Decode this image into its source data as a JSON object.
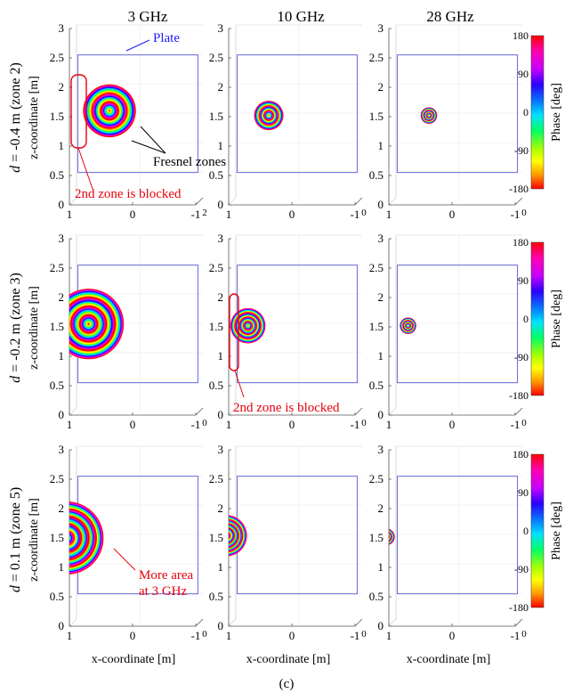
{
  "figure": {
    "caption": "(c)",
    "column_titles": [
      "3 GHz",
      "10 GHz",
      "28 GHz"
    ],
    "row_labels": [
      {
        "d": "d",
        "rest": " = -0.4 m (zone 2)",
        "axis": "z-coordinate [m]"
      },
      {
        "d": "d",
        "rest": " = -0.2 m (zone 3)",
        "axis": "z-coordinate [m]"
      },
      {
        "d": "d",
        "rest": " = 0.1 m (zone 5)",
        "axis": "z-coordinate [m]"
      }
    ],
    "xlabel": "x-coordinate [m]",
    "colorbar_label": "Phase [deg]",
    "colorbar_ticks": [
      "180",
      "90",
      "0",
      "-90",
      "-180"
    ],
    "y_ticks": [
      "0",
      "0.5",
      "1",
      "1.5",
      "2",
      "2.5",
      "3"
    ],
    "x_ticks": [
      "1",
      "0",
      "-1"
    ],
    "x_tick_depth_suffix": [
      "2",
      "0"
    ],
    "annotations": {
      "plate": "Plate",
      "fresnel": "Fresnel zones",
      "blocked_1": "2nd zone is blocked",
      "blocked_2": "2nd zone is blocked",
      "more_area_line1": "More area",
      "more_area_line2": "at 3 GHz"
    },
    "colors": {
      "plate_outline": "#5b5bd6",
      "annotation_red": "#e8000b",
      "plate_label": "#1a1aff",
      "colormap": [
        "#ff0000",
        "#ff00b0",
        "#c800ff",
        "#2a00ff",
        "#0090ff",
        "#00e2ff",
        "#00ff66",
        "#aaff00",
        "#ffff00",
        "#ff9900",
        "#ff0000"
      ]
    }
  },
  "chart_data": {
    "type": "heatmap",
    "description_source": "3x3 grid of phase maps of the field on a plate (x-coordinate vs z-coordinate)",
    "xlim": [
      1,
      -1
    ],
    "ylim": [
      0,
      3
    ],
    "plate": {
      "x": [
        0.95,
        -0.95
      ],
      "z": [
        0.55,
        2.55
      ]
    },
    "phase_range_deg": [
      -180,
      180
    ],
    "panels": [
      {
        "row": 0,
        "col": 0,
        "freq": "3 GHz",
        "d": "-0.4 m",
        "center": [
          0.45,
          1.6
        ],
        "radius": 0.45,
        "ring_count": 3
      },
      {
        "row": 0,
        "col": 1,
        "freq": "10 GHz",
        "d": "-0.4 m",
        "center": [
          0.45,
          1.52
        ],
        "radius": 0.25,
        "ring_count": 3
      },
      {
        "row": 0,
        "col": 2,
        "freq": "28 GHz",
        "d": "-0.4 m",
        "center": [
          0.45,
          1.52
        ],
        "radius": 0.14,
        "ring_count": 3
      },
      {
        "row": 1,
        "col": 0,
        "freq": "3 GHz",
        "d": "-0.2 m",
        "center": [
          0.78,
          1.55
        ],
        "radius": 0.6,
        "ring_count": 4
      },
      {
        "row": 1,
        "col": 1,
        "freq": "10 GHz",
        "d": "-0.2 m",
        "center": [
          0.78,
          1.52
        ],
        "radius": 0.3,
        "ring_count": 4
      },
      {
        "row": 1,
        "col": 2,
        "freq": "28 GHz",
        "d": "-0.2 m",
        "center": [
          0.78,
          1.52
        ],
        "radius": 0.14,
        "ring_count": 3
      },
      {
        "row": 2,
        "col": 0,
        "freq": "3 GHz",
        "d": "0.1 m",
        "center": [
          1.12,
          1.5
        ],
        "radius": 0.62,
        "ring_count": 5
      },
      {
        "row": 2,
        "col": 1,
        "freq": "10 GHz",
        "d": "0.1 m",
        "center": [
          1.12,
          1.54
        ],
        "radius": 0.35,
        "ring_count": 5
      },
      {
        "row": 2,
        "col": 2,
        "freq": "28 GHz",
        "d": "0.1 m",
        "center": [
          1.12,
          1.52
        ],
        "radius": 0.14,
        "ring_count": 3
      }
    ]
  }
}
